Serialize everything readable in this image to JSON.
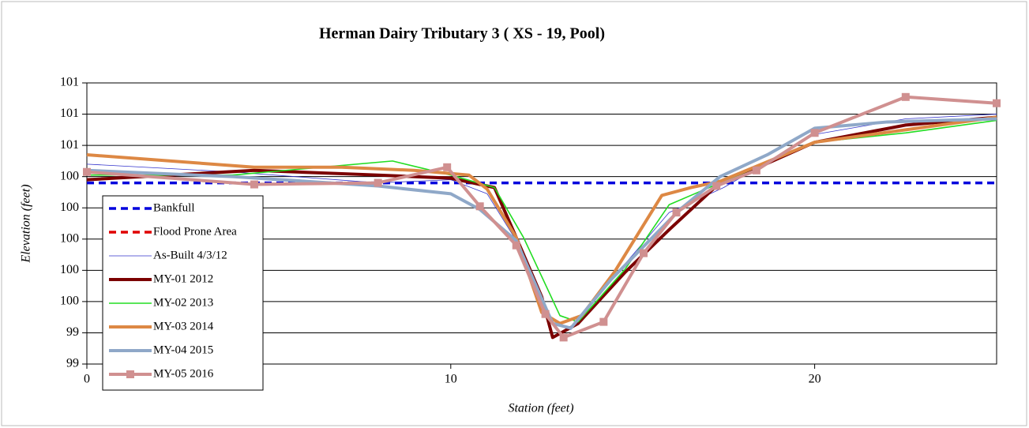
{
  "chart_data": {
    "type": "line",
    "title": "Herman Dairy Tributary 3  ( XS - 19, Pool)",
    "x_label": "Station (feet)",
    "y_label": "Elevation (feet)",
    "xlim": [
      0,
      25
    ],
    "xticks": [
      0,
      10,
      20
    ],
    "ylim": [
      99.2,
      101.0
    ],
    "yticks": [
      {
        "value": 99.2,
        "label": "99"
      },
      {
        "value": 99.4,
        "label": "99"
      },
      {
        "value": 99.6,
        "label": "100"
      },
      {
        "value": 99.8,
        "label": "100"
      },
      {
        "value": 100.0,
        "label": "100"
      },
      {
        "value": 100.2,
        "label": "100"
      },
      {
        "value": 100.4,
        "label": "100"
      },
      {
        "value": 100.6,
        "label": "101"
      },
      {
        "value": 100.8,
        "label": "101"
      },
      {
        "value": 101.0,
        "label": "101"
      }
    ],
    "grid": true,
    "legend": "lower left",
    "series": [
      {
        "name": "Bankfull",
        "color": "#0000dd",
        "style": "dashed",
        "x": [
          0,
          25
        ],
        "values": [
          100.36,
          100.36
        ]
      },
      {
        "name": "Flood Prone Area",
        "color": "#e00000",
        "style": "dashed",
        "x": [],
        "values": []
      },
      {
        "name": "As-Built 4/3/12",
        "color": "#3333cc",
        "style": "thin",
        "x": [
          0,
          4,
          8,
          10,
          11,
          11.8,
          12.8,
          13.3,
          14.6,
          16,
          17.5,
          20,
          22.5,
          25
        ],
        "values": [
          100.48,
          100.43,
          100.36,
          100.38,
          100.29,
          99.99,
          99.46,
          99.42,
          99.79,
          100.17,
          100.33,
          100.67,
          100.77,
          100.8
        ]
      },
      {
        "name": "MY-01 2012",
        "color": "#7b0000",
        "style": "thick",
        "x": [
          0,
          4.6,
          8,
          10,
          11.2,
          11.8,
          12.5,
          12.8,
          13.5,
          14.8,
          16,
          17.3,
          20,
          22.5,
          25
        ],
        "values": [
          100.38,
          100.44,
          100.41,
          100.39,
          100.33,
          100.01,
          99.63,
          99.37,
          99.46,
          99.79,
          100.06,
          100.34,
          100.62,
          100.73,
          100.78
        ]
      },
      {
        "name": "MY-02 2013",
        "color": "#22dd22",
        "style": "medium",
        "x": [
          0,
          4,
          8.4,
          10,
          11.2,
          12,
          13,
          13.5,
          14.8,
          16,
          16.8,
          17.4,
          20,
          22.5,
          25
        ],
        "values": [
          100.41,
          100.41,
          100.5,
          100.41,
          100.33,
          100.01,
          99.51,
          99.47,
          99.81,
          100.22,
          100.3,
          100.36,
          100.62,
          100.68,
          100.76
        ]
      },
      {
        "name": "MY-03 2014",
        "color": "#dd8844",
        "style": "thick",
        "x": [
          0,
          4.6,
          7,
          9,
          10.5,
          11,
          11.8,
          12.5,
          13,
          13.6,
          14.5,
          15.8,
          16.6,
          17.4,
          20,
          22.5,
          25
        ],
        "values": [
          100.54,
          100.46,
          100.46,
          100.44,
          100.41,
          100.32,
          100.01,
          99.53,
          99.46,
          99.51,
          99.79,
          100.28,
          100.33,
          100.37,
          100.62,
          100.7,
          100.78
        ]
      },
      {
        "name": "MY-04 2015",
        "color": "#8fa8c8",
        "style": "thick",
        "x": [
          0,
          4,
          8,
          10,
          10.8,
          11.8,
          12.8,
          13.3,
          14.4,
          16.3,
          17.4,
          18.7,
          20,
          22,
          25
        ],
        "values": [
          100.44,
          100.4,
          100.34,
          100.29,
          100.19,
          99.99,
          99.46,
          99.43,
          99.74,
          100.19,
          100.4,
          100.54,
          100.71,
          100.75,
          100.77
        ]
      },
      {
        "name": "MY-05 2016",
        "color": "#d09090",
        "style": "marker",
        "x": [
          0,
          4.6,
          8,
          9.9,
          10.8,
          11.8,
          12.6,
          13.1,
          14.2,
          15.3,
          16.2,
          17.3,
          18.4,
          20,
          22.5,
          25
        ],
        "values": [
          100.43,
          100.35,
          100.36,
          100.46,
          100.21,
          99.96,
          99.52,
          99.37,
          99.47,
          99.91,
          100.17,
          100.34,
          100.44,
          100.68,
          100.91,
          100.87
        ]
      }
    ]
  }
}
